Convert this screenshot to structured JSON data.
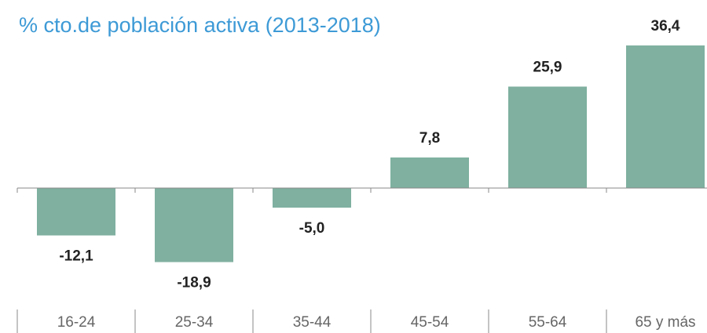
{
  "chart_data": {
    "type": "bar",
    "title": "% cto.de población activa (2013-2018)",
    "categories": [
      "16-24",
      "25-34",
      "35-44",
      "45-54",
      "55-64",
      "65 y más"
    ],
    "values": [
      -12.1,
      -18.9,
      -5.0,
      7.8,
      25.9,
      36.4
    ],
    "value_labels": [
      "-12,1",
      "-18,9",
      "-5,0",
      "7,8",
      "25,9",
      "36,4"
    ],
    "color": "#7fb0a0"
  }
}
